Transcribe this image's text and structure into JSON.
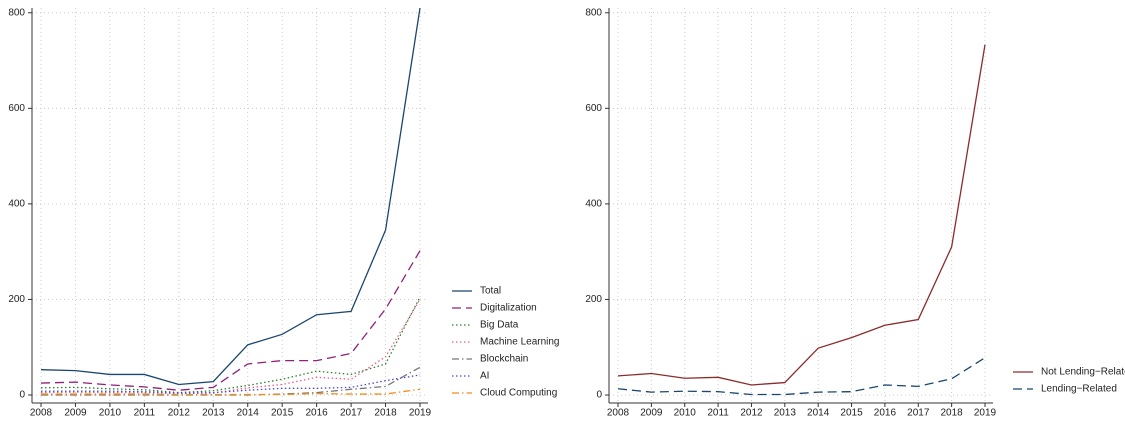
{
  "chart_data": [
    {
      "type": "line",
      "x": [
        2008,
        2009,
        2010,
        2011,
        2012,
        2013,
        2014,
        2015,
        2016,
        2017,
        2018,
        2019
      ],
      "xlim": [
        2008,
        2019
      ],
      "xticks": [
        2008,
        2009,
        2010,
        2011,
        2012,
        2013,
        2014,
        2015,
        2016,
        2017,
        2018,
        2019
      ],
      "ylim": [
        0,
        810
      ],
      "yticks": [
        0,
        200,
        400,
        600,
        800
      ],
      "grid": true,
      "legend": "right",
      "series": [
        {
          "name": "Total",
          "color": "#1a476f",
          "dash": "solid",
          "values": [
            53,
            51,
            43,
            43,
            22,
            28,
            105,
            127,
            168,
            175,
            345,
            810
          ]
        },
        {
          "name": "Digitalization",
          "color": "#90217b",
          "dash": "longdash",
          "values": [
            25,
            27,
            21,
            17,
            10,
            16,
            65,
            72,
            72,
            87,
            180,
            302
          ]
        },
        {
          "name": "Big Data",
          "color": "#2a7f2a",
          "dash": "dotted",
          "values": [
            15,
            16,
            13,
            11,
            5,
            9,
            20,
            33,
            50,
            43,
            65,
            205
          ]
        },
        {
          "name": "Machine Learning",
          "color": "#e8608e",
          "dash": "dotted",
          "values": [
            5,
            6,
            5,
            5,
            3,
            4,
            15,
            22,
            37,
            33,
            80,
            200
          ]
        },
        {
          "name": "Blockchain",
          "color": "#777777",
          "dash": "dashdot",
          "values": [
            0,
            0,
            0,
            0,
            0,
            0,
            0,
            2,
            5,
            12,
            18,
            58
          ]
        },
        {
          "name": "AI",
          "color": "#4a4ad0",
          "dash": "dotted",
          "values": [
            8,
            8,
            8,
            7,
            4,
            5,
            10,
            14,
            14,
            16,
            30,
            42
          ]
        },
        {
          "name": "Cloud Computing",
          "color": "#f28e1c",
          "dash": "dashdot",
          "values": [
            2,
            2,
            2,
            2,
            1,
            1,
            1,
            1,
            3,
            2,
            2,
            12
          ]
        }
      ]
    },
    {
      "type": "line",
      "x": [
        2008,
        2009,
        2010,
        2011,
        2012,
        2013,
        2014,
        2015,
        2016,
        2017,
        2018,
        2019
      ],
      "xlim": [
        2008,
        2019
      ],
      "xticks": [
        2008,
        2009,
        2010,
        2011,
        2012,
        2013,
        2014,
        2015,
        2016,
        2017,
        2018,
        2019
      ],
      "ylim": [
        0,
        810
      ],
      "yticks": [
        0,
        200,
        400,
        600,
        800
      ],
      "grid": true,
      "legend": "right",
      "series": [
        {
          "name": "Not Lending−Related",
          "color": "#8b2c2c",
          "dash": "solid",
          "values": [
            40,
            45,
            35,
            37,
            21,
            26,
            98,
            120,
            146,
            158,
            310,
            733
          ]
        },
        {
          "name": "Lending−Related",
          "color": "#1a476f",
          "dash": "longdash",
          "values": [
            13,
            6,
            8,
            7,
            1,
            1,
            6,
            7,
            21,
            18,
            34,
            78
          ]
        }
      ]
    }
  ]
}
